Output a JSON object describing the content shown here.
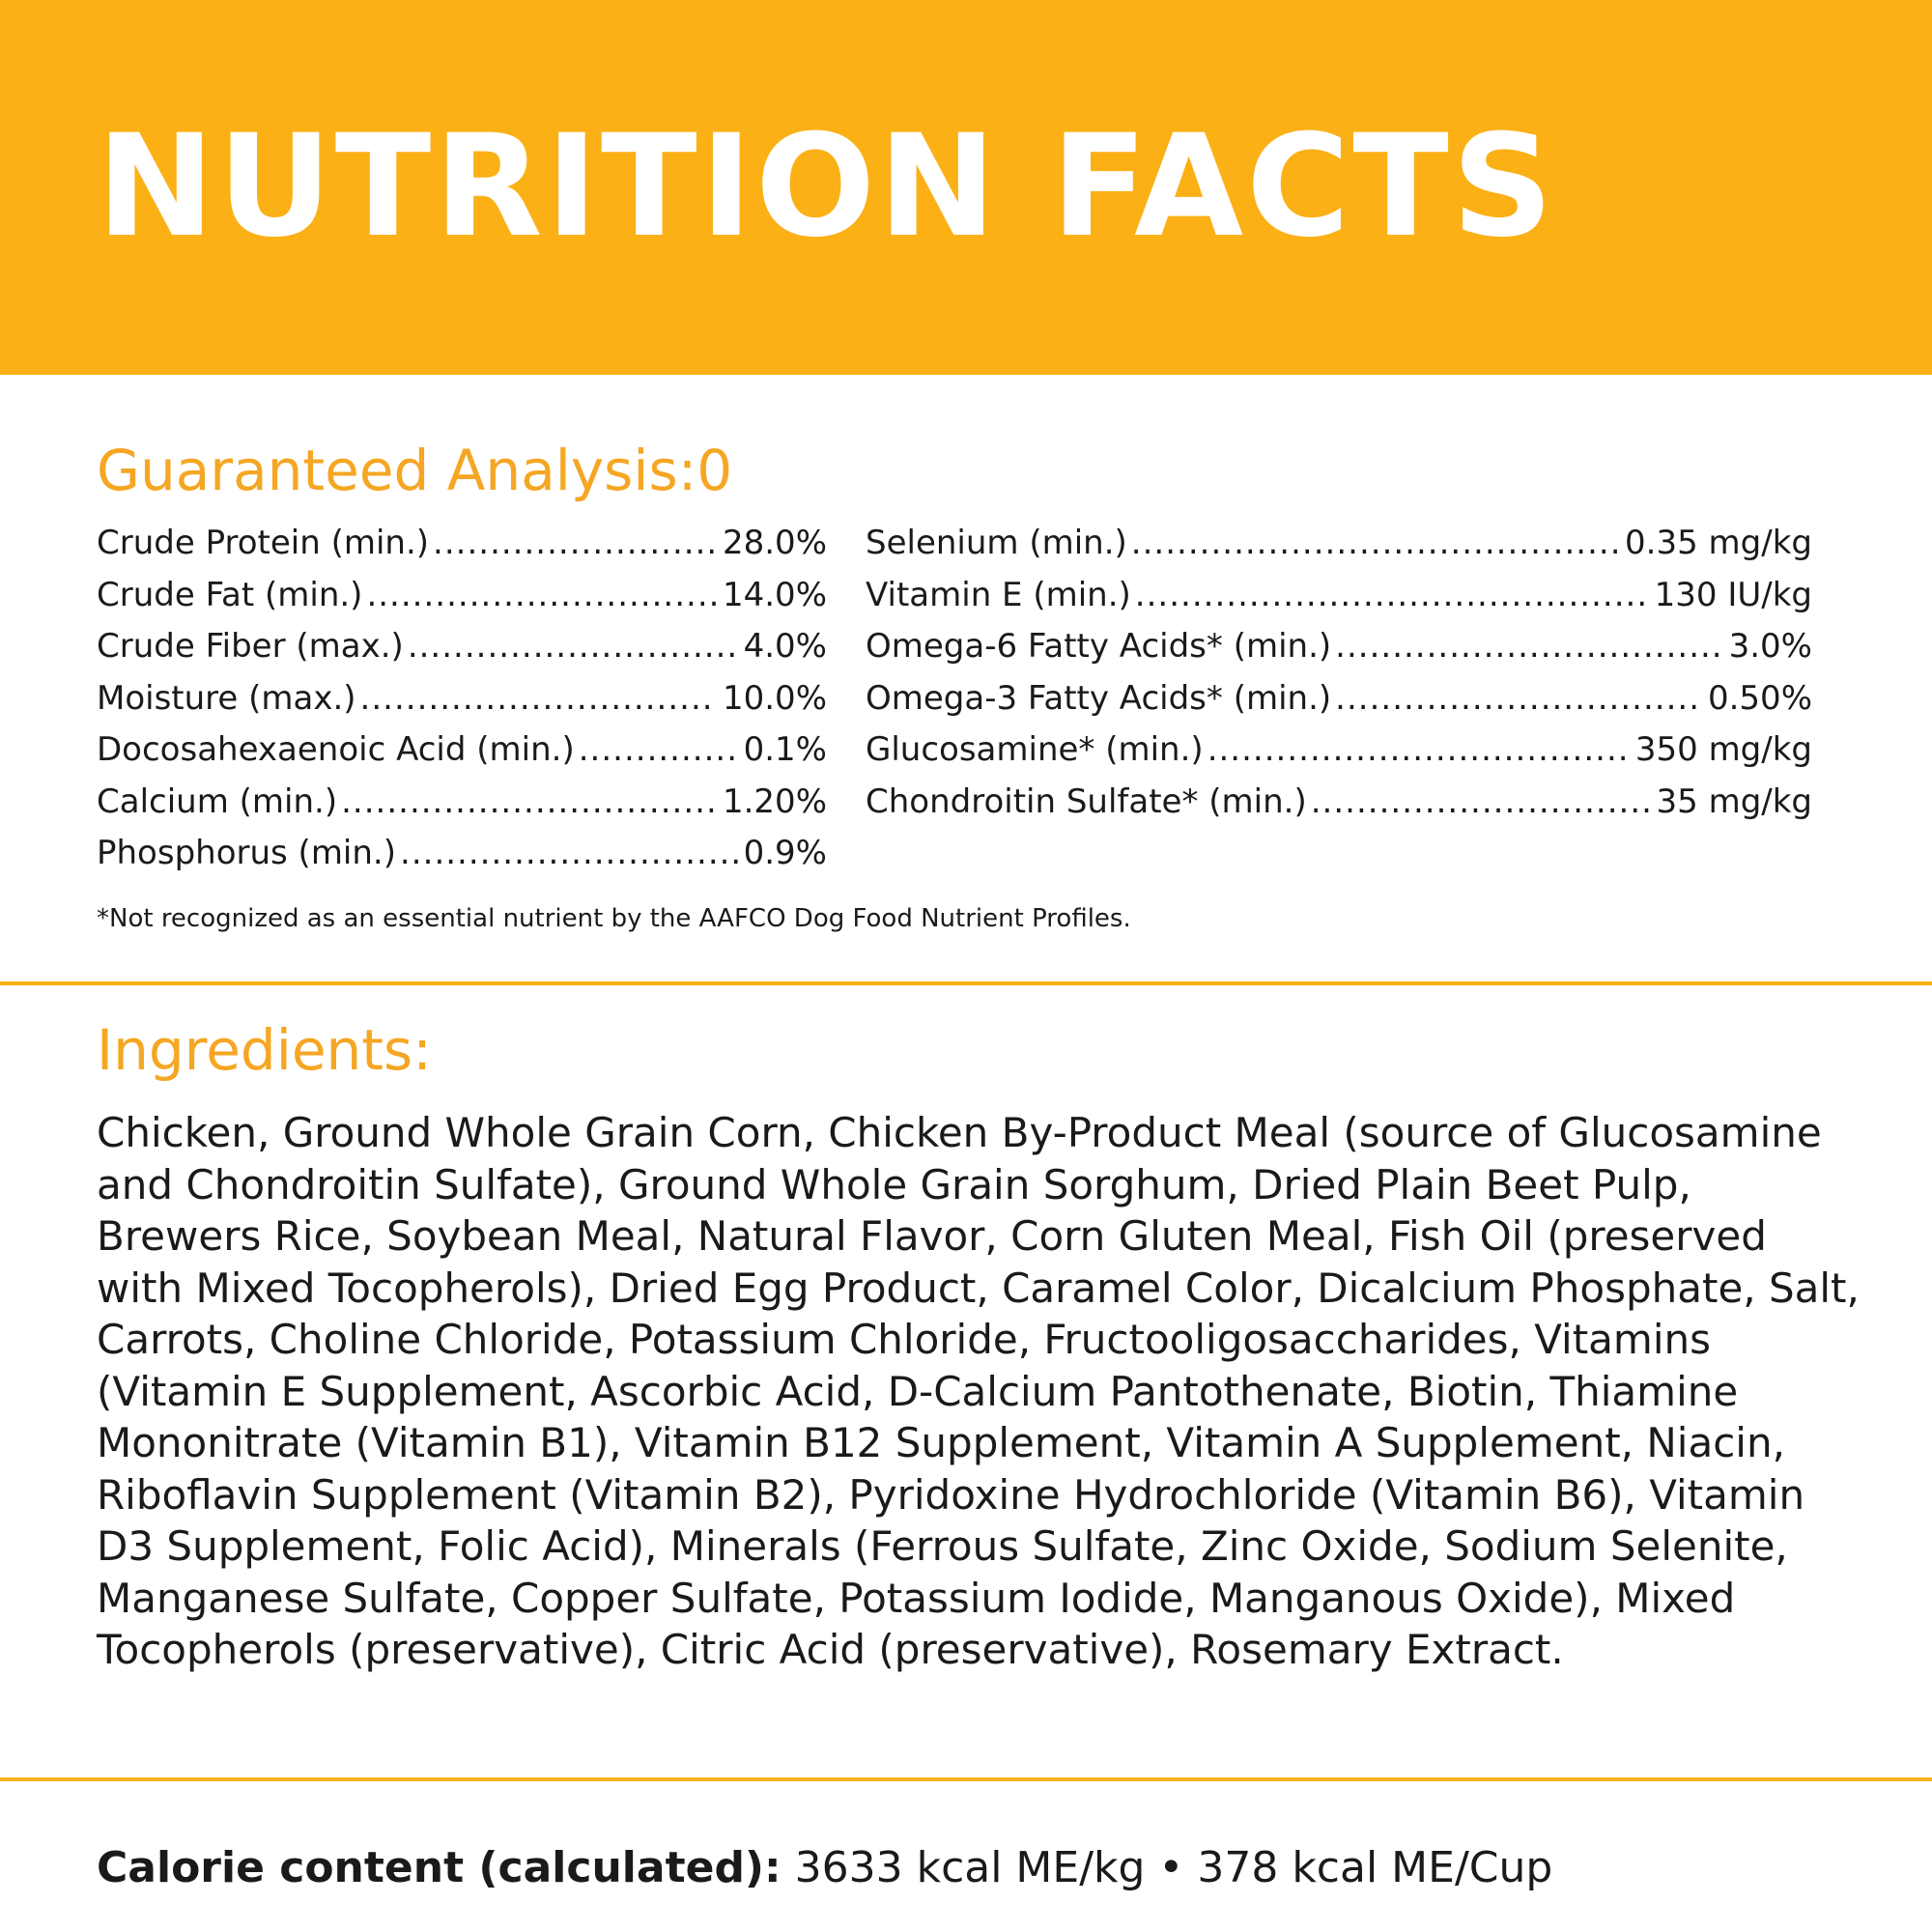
{
  "header": {
    "title": "NUTRITION FACTS"
  },
  "colors": {
    "accent": "#fbb016",
    "heading": "#f5a623",
    "text": "#1a1a1a",
    "banner_text": "#ffffff"
  },
  "guaranteed_analysis": {
    "heading": "Guaranteed Analysis:0",
    "left": [
      {
        "label": "Crude Protein (min.)",
        "value": "28.0%"
      },
      {
        "label": "Crude Fat (min.)",
        "value": "14.0%"
      },
      {
        "label": "Crude Fiber (max.)",
        "value": "4.0%"
      },
      {
        "label": "Moisture (max.)",
        "value": "10.0%"
      },
      {
        "label": "Docosahexaenoic Acid (min.)",
        "value": "0.1%"
      },
      {
        "label": "Calcium (min.)",
        "value": "1.20%"
      },
      {
        "label": "Phosphorus (min.)",
        "value": "0.9%"
      }
    ],
    "right": [
      {
        "label": "Selenium (min.)",
        "value": "0.35 mg/kg"
      },
      {
        "label": "Vitamin E (min.)",
        "value": "130 IU/kg"
      },
      {
        "label": "Omega-6 Fatty Acids* (min.)",
        "value": "3.0%"
      },
      {
        "label": "Omega-3 Fatty Acids* (min.)",
        "value": "0.50%"
      },
      {
        "label": "Glucosamine* (min.)",
        "value": "350 mg/kg"
      },
      {
        "label": "Chondroitin Sulfate* (min.)",
        "value": "35 mg/kg"
      }
    ],
    "footnote": "*Not recognized as an essential nutrient by the AAFCO Dog Food Nutrient Profiles."
  },
  "ingredients": {
    "heading": "Ingredients:",
    "text": "Chicken, Ground Whole Grain Corn, Chicken By-Product Meal (source of Glucosamine and Chondroitin Sulfate), Ground Whole Grain Sorghum, Dried Plain Beet Pulp, Brewers Rice, Soybean Meal, Natural Flavor, Corn Gluten Meal, Fish Oil (preserved with Mixed Tocopherols), Dried Egg Product, Caramel Color, Dicalcium Phosphate, Salt, Carrots, Choline Chloride, Potassium Chloride, Fructooligosaccharides, Vitamins (Vitamin E Supplement, Ascorbic Acid, D-Calcium Pantothenate, Biotin, Thiamine Mononitrate (Vitamin B1), Vitamin B12 Supplement, Vitamin A Supplement, Niacin, Riboflavin Supplement (Vitamin B2), Pyridoxine Hydrochloride (Vitamin B6), Vitamin D3 Supplement, Folic Acid), Minerals (Ferrous Sulfate, Zinc Oxide, Sodium Selenite, Manganese Sulfate, Copper Sulfate, Potassium Iodide, Manganous Oxide), Mixed Tocopherols (preservative), Citric Acid (preservative), Rosemary Extract."
  },
  "calories": {
    "label": "Calorie content (calculated):",
    "value": " 3633 kcal ME/kg • 378 kcal ME/Cup"
  }
}
